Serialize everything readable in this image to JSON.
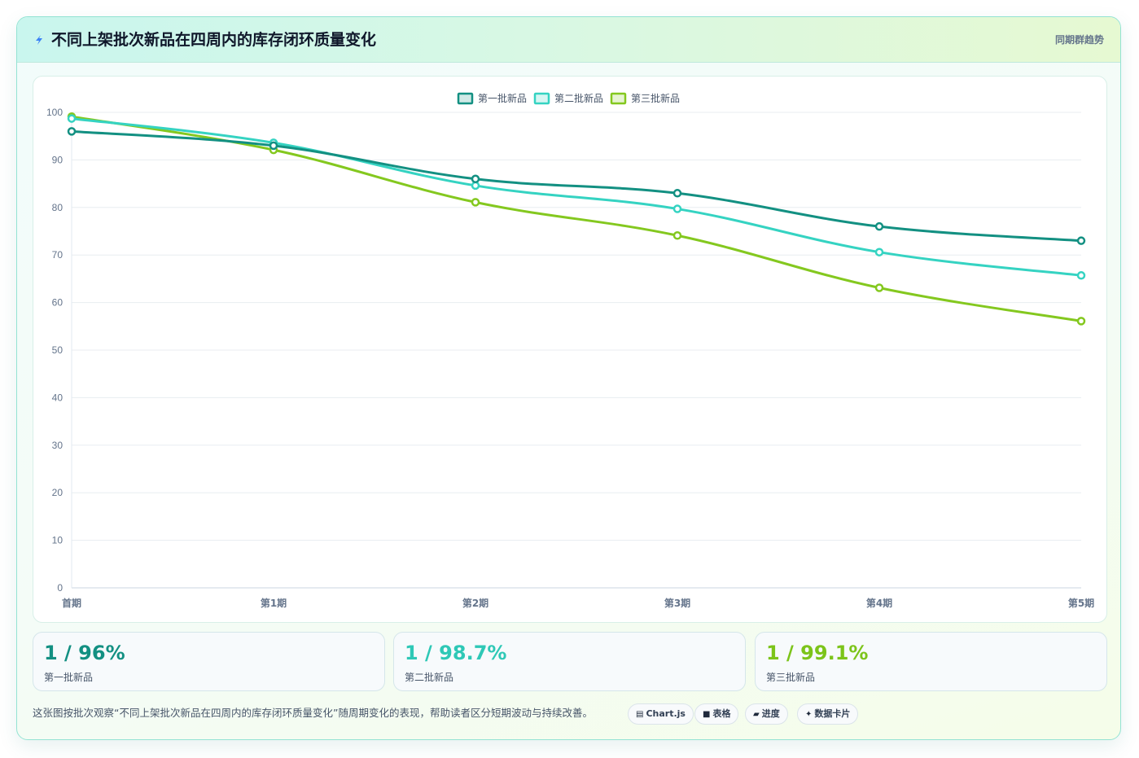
{
  "header": {
    "title": "不同上架批次新品在四周内的库存闭环质量变化",
    "badge": "同期群趋势",
    "icon": "lightning-icon"
  },
  "chart_data": {
    "type": "line",
    "categories": [
      "首期",
      "第1期",
      "第2期",
      "第3期",
      "第4期",
      "第5期"
    ],
    "ylim": [
      0,
      100
    ],
    "yticks": [
      0,
      10,
      20,
      30,
      40,
      50,
      60,
      70,
      80,
      90,
      100
    ],
    "grid": true,
    "legend_position": "top-center",
    "series": [
      {
        "name": "第一批新品",
        "color": "#139082",
        "values": [
          96,
          93,
          86,
          83,
          76,
          73
        ]
      },
      {
        "name": "第二批新品",
        "color": "#35d3c2",
        "values": [
          98.7,
          93.6,
          84.6,
          79.7,
          70.6,
          65.7
        ]
      },
      {
        "name": "第三批新品",
        "color": "#84c81f",
        "values": [
          99.1,
          92.1,
          81.1,
          74.1,
          63.1,
          56.1
        ]
      }
    ]
  },
  "stats": [
    {
      "value": "1 / 96%",
      "label": "第一批新品",
      "color": "#139082"
    },
    {
      "value": "1 / 98.7%",
      "label": "第二批新品",
      "color": "#2ec8b6"
    },
    {
      "value": "1 / 99.1%",
      "label": "第三批新品",
      "color": "#7cc41a"
    }
  ],
  "footer": {
    "description": "这张图按批次观察“不同上架批次新品在四周内的库存闭环质量变化”随周期变化的表现，帮助读者区分短期波动与持续改善。",
    "pills": [
      {
        "icon": "▤",
        "label": "Chart.js"
      },
      {
        "icon": "■",
        "label": "表格"
      },
      {
        "icon": "▰",
        "label": "进度"
      },
      {
        "icon": "✦",
        "label": "数据卡片"
      }
    ]
  }
}
